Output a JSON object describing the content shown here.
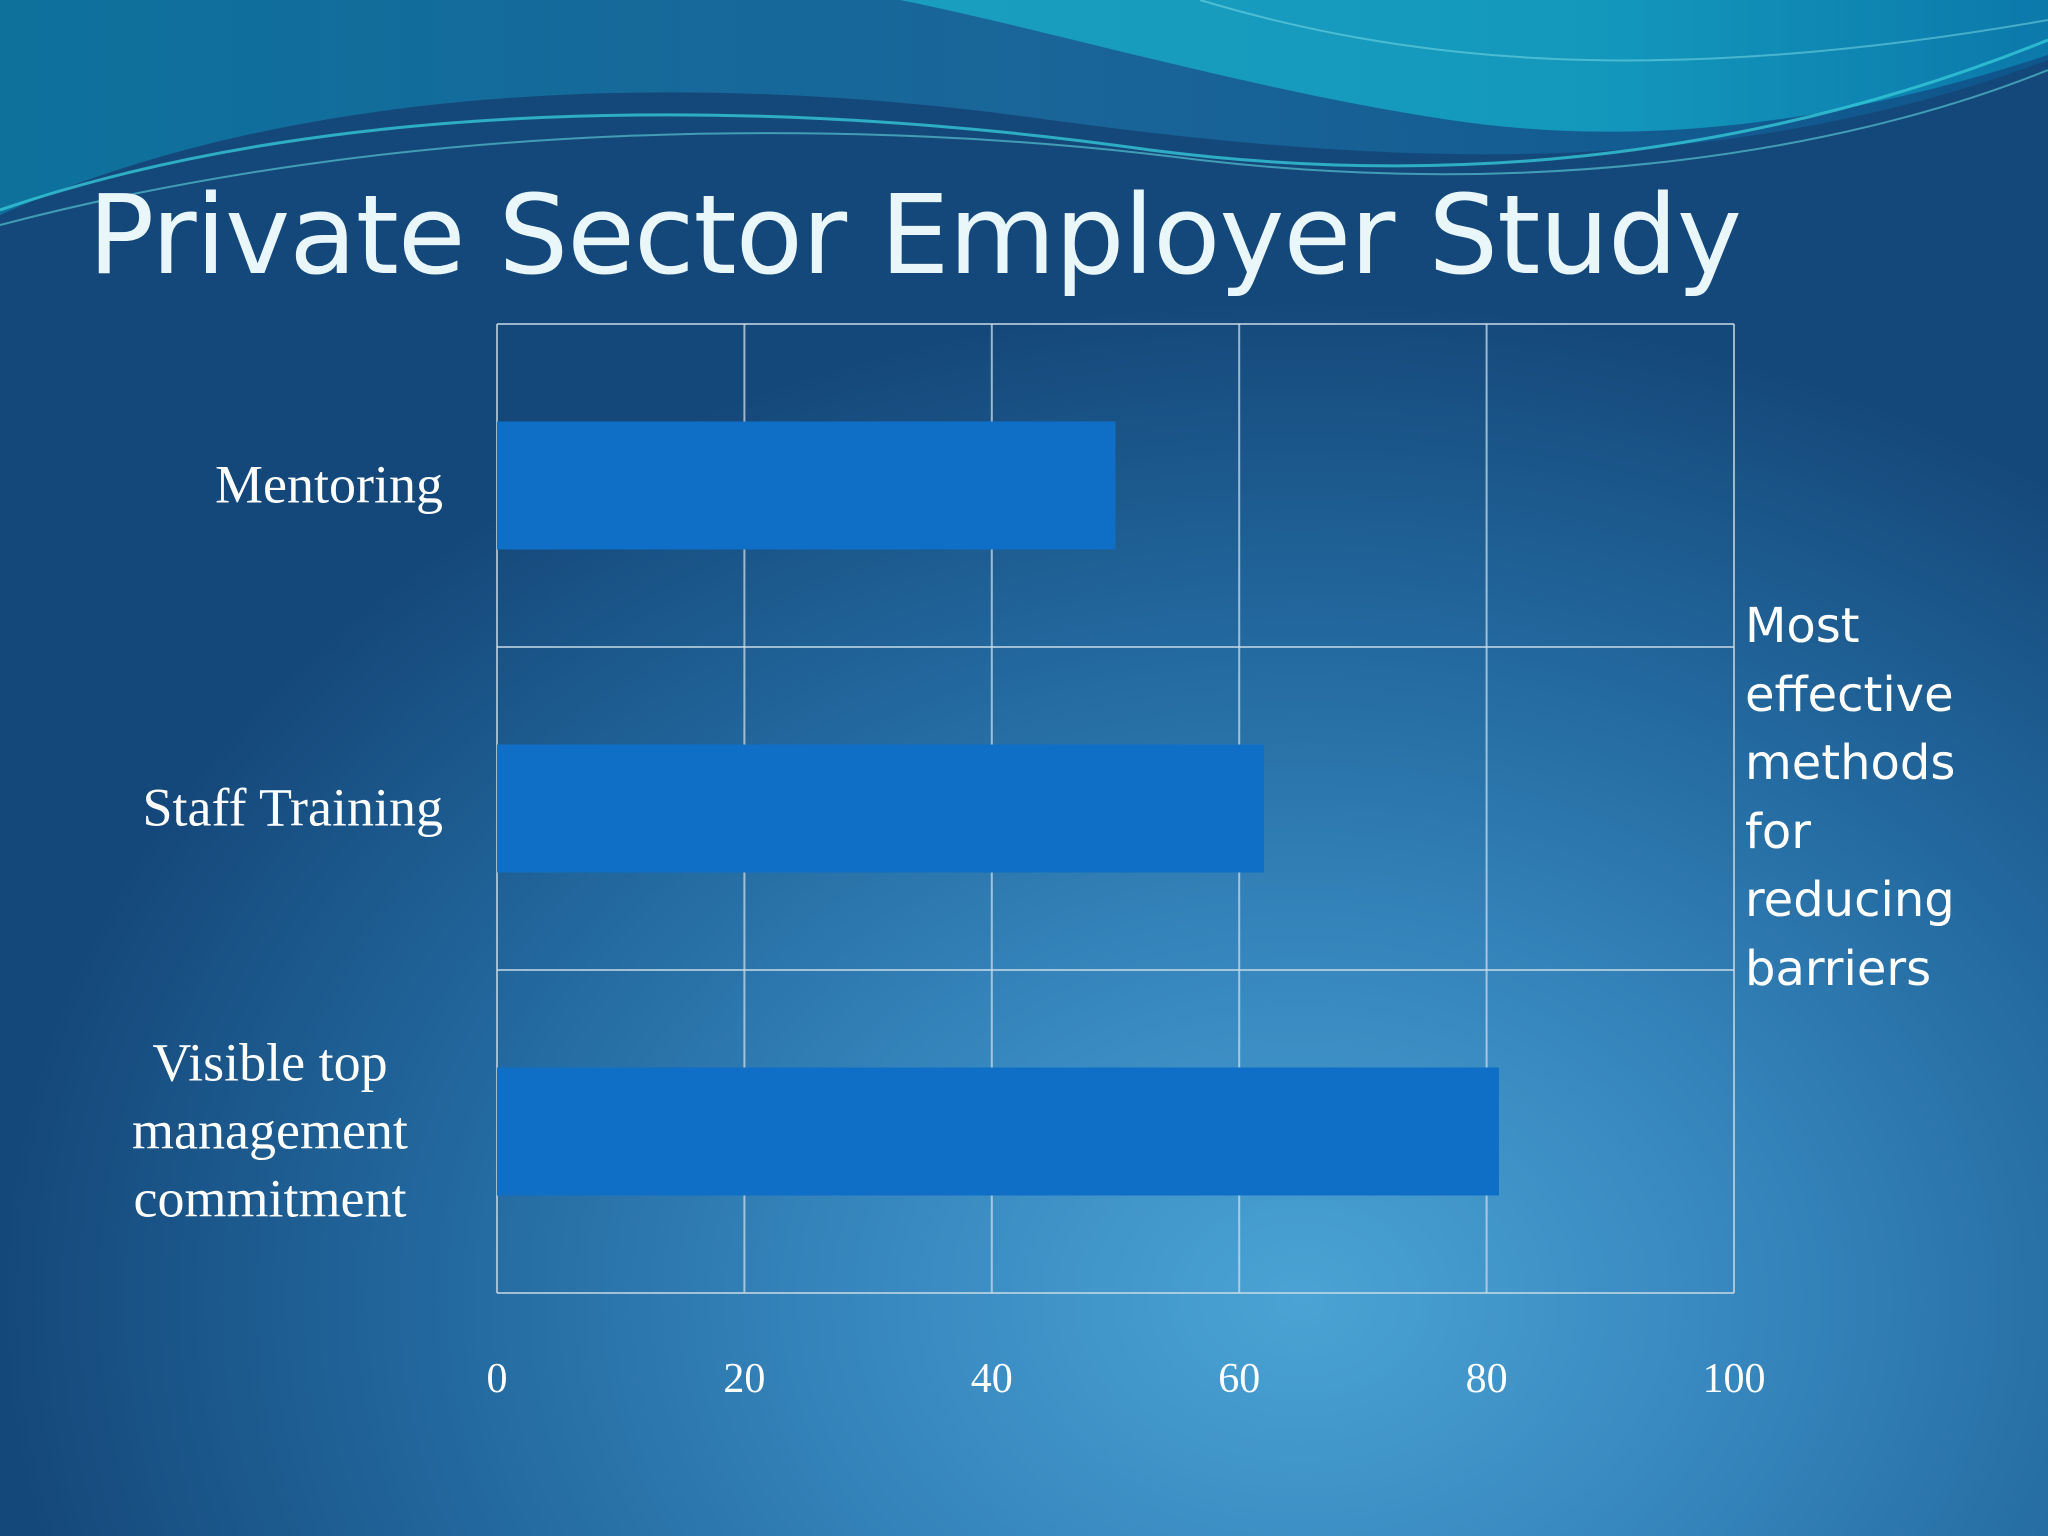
{
  "slide": {
    "title": "Private Sector Employer Study",
    "side_note": "Most effective methods for reducing barriers"
  },
  "colors": {
    "bar": "#0f6fc6",
    "grid": "#c9dbe6",
    "title": "#e9f7fb",
    "text": "#ffffff"
  },
  "chart_data": {
    "type": "bar",
    "orientation": "horizontal",
    "categories": [
      "Mentoring",
      "Staff Training",
      "Visible top management commitment"
    ],
    "category_lines": [
      [
        "Mentoring"
      ],
      [
        "Staff Training"
      ],
      [
        "Visible top",
        "management",
        "commitment"
      ]
    ],
    "values": [
      50,
      62,
      81
    ],
    "xlim": [
      0,
      100
    ],
    "xticks": [
      "0",
      "20",
      "40",
      "60",
      "80",
      "100"
    ],
    "grid": true,
    "legend": "none"
  }
}
